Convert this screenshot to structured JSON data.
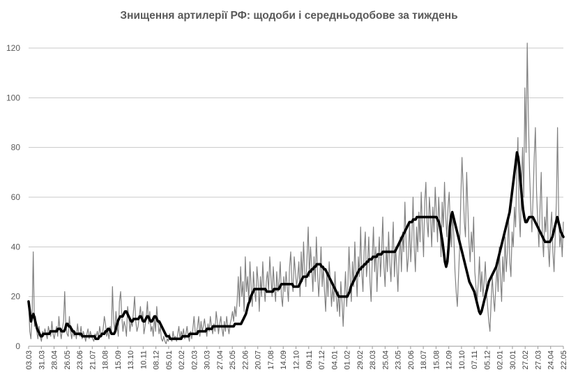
{
  "chart_data": {
    "type": "line",
    "title": "Знищення артилерії РФ: щодоби і середньодобове за тиждень",
    "xlabel": "",
    "ylabel": "",
    "ylim": [
      0,
      120
    ],
    "yticks": [
      "0",
      "20",
      "40",
      "60",
      "80",
      "100",
      "120"
    ],
    "xticks": [
      "03.03",
      "31.03",
      "28.04",
      "26.05",
      "23.06",
      "21.07",
      "18.08",
      "15.09",
      "13.10",
      "10.11",
      "08.12",
      "05.01",
      "02.02",
      "02.03",
      "30.03",
      "27.04",
      "25.05",
      "22.06",
      "20.07",
      "17.08",
      "14.09",
      "12.10",
      "09.11",
      "07.12",
      "04.01",
      "01.02",
      "29.02",
      "28.03",
      "25.04",
      "23.05",
      "20.06",
      "18.07",
      "15.08",
      "12.09",
      "10.10",
      "07.11",
      "05.12",
      "02.01",
      "30.01",
      "27.02",
      "27.03",
      "24.04",
      "22.05"
    ],
    "grid": true,
    "legend": "none",
    "series": [
      {
        "name": "",
        "color": "#808080",
        "values": [
          18,
          6,
          3,
          12,
          38,
          8,
          12,
          6,
          3,
          8,
          4,
          2,
          6,
          4,
          7,
          5,
          3,
          8,
          6,
          4,
          10,
          5,
          3,
          6,
          8,
          4,
          12,
          6,
          3,
          7,
          10,
          22,
          8,
          5,
          4,
          12,
          6,
          3,
          7,
          4,
          6,
          3,
          9,
          5,
          4,
          8,
          3,
          6,
          4,
          2,
          5,
          7,
          3,
          6,
          4,
          3,
          2,
          5,
          4,
          6,
          3,
          8,
          5,
          4,
          7,
          12,
          9,
          4,
          6,
          3,
          8,
          5,
          24,
          10,
          6,
          14,
          8,
          4,
          18,
          22,
          12,
          6,
          10,
          8,
          4,
          16,
          12,
          6,
          10,
          8,
          14,
          20,
          10,
          6,
          8,
          12,
          16,
          10,
          14,
          5,
          8,
          12,
          18,
          9,
          14,
          6,
          8,
          4,
          12,
          6,
          16,
          10,
          5,
          8,
          3,
          2,
          4,
          2,
          1,
          3,
          2,
          5,
          3,
          2,
          6,
          3,
          4,
          2,
          5,
          8,
          3,
          6,
          4,
          7,
          3,
          5,
          8,
          4,
          2,
          6,
          3,
          7,
          12,
          6,
          5,
          8,
          12,
          4,
          10,
          6,
          8,
          11,
          7,
          4,
          9,
          6,
          12,
          8,
          5,
          9,
          6,
          14,
          10,
          5,
          9,
          12,
          7,
          4,
          10,
          6,
          12,
          8,
          5,
          9,
          11,
          14,
          10,
          16,
          12,
          18,
          28,
          16,
          32,
          20,
          26,
          14,
          36,
          22,
          28,
          18,
          34,
          24,
          16,
          30,
          22,
          18,
          32,
          26,
          14,
          28,
          20,
          34,
          24,
          18,
          26,
          30,
          22,
          36,
          28,
          20,
          32,
          24,
          18,
          30,
          22,
          26,
          34,
          20,
          16,
          28,
          22,
          30,
          24,
          18,
          32,
          38,
          26,
          22,
          36,
          30,
          24,
          28,
          34,
          20,
          38,
          26,
          42,
          30,
          24,
          36,
          48,
          28,
          40,
          32,
          22,
          36,
          26,
          44,
          30,
          20,
          28,
          40,
          24,
          32,
          22,
          14,
          30,
          20,
          34,
          26,
          16,
          24,
          18,
          30,
          20,
          14,
          22,
          12,
          26,
          18,
          8,
          20,
          30,
          16,
          24,
          40,
          28,
          18,
          34,
          24,
          42,
          30,
          20,
          36,
          28,
          48,
          30,
          22,
          38,
          46,
          28,
          34,
          44,
          26,
          18,
          36,
          48,
          30,
          40,
          22,
          34,
          44,
          28,
          38,
          52,
          32,
          24,
          40,
          30,
          46,
          34,
          26,
          38,
          50,
          28,
          40,
          32,
          22,
          36,
          44,
          30,
          46,
          38,
          58,
          42,
          30,
          36,
          50,
          34,
          44,
          60,
          40,
          30,
          48,
          38,
          54,
          42,
          62,
          48,
          36,
          58,
          66,
          50,
          44,
          60,
          52,
          40,
          56,
          46,
          64,
          54,
          42,
          60,
          50,
          36,
          58,
          48,
          66,
          52,
          44,
          56,
          62,
          48,
          40,
          54,
          44,
          30,
          22,
          16,
          28,
          40,
          60,
          76,
          64,
          50,
          44,
          70,
          56,
          42,
          34,
          46,
          38,
          52,
          30,
          24,
          18,
          26,
          36,
          22,
          30,
          20,
          26,
          34,
          22,
          16,
          10,
          6,
          18,
          28,
          20,
          14,
          24,
          32,
          22,
          40,
          28,
          18,
          36,
          26,
          44,
          30,
          38,
          52,
          34,
          28,
          46,
          40,
          56,
          48,
          70,
          84,
          54,
          44,
          64,
          80,
          60,
          104,
          78,
          122,
          92,
          70,
          56,
          46,
          60,
          76,
          88,
          62,
          50,
          40,
          56,
          70,
          44,
          36,
          52,
          46,
          60,
          40,
          32,
          48,
          54,
          38,
          30,
          44,
          58,
          88,
          52,
          40,
          46,
          36,
          50
        ]
      },
      {
        "name": "",
        "color": "#000000",
        "values": [
          18,
          14,
          10,
          12,
          13,
          11,
          9,
          7,
          6,
          5,
          4,
          4,
          5,
          5,
          5,
          5,
          5,
          5,
          6,
          6,
          6,
          6,
          6,
          6,
          7,
          7,
          7,
          6,
          6,
          6,
          7,
          9,
          9,
          8,
          8,
          7,
          6,
          6,
          5,
          5,
          5,
          5,
          5,
          5,
          4,
          4,
          4,
          4,
          4,
          4,
          4,
          4,
          4,
          4,
          4,
          3,
          3,
          3,
          4,
          4,
          5,
          5,
          5,
          6,
          6,
          7,
          7,
          6,
          5,
          5,
          5,
          6,
          8,
          10,
          11,
          12,
          12,
          12,
          13,
          14,
          14,
          13,
          12,
          11,
          10,
          10,
          11,
          11,
          11,
          11,
          11,
          12,
          12,
          11,
          10,
          10,
          11,
          12,
          12,
          11,
          10,
          10,
          11,
          12,
          12,
          11,
          10,
          10,
          9,
          8,
          7,
          6,
          5,
          4,
          4,
          4,
          3,
          3,
          3,
          3,
          3,
          3,
          3,
          3,
          3,
          3,
          4,
          4,
          4,
          4,
          4,
          4,
          5,
          5,
          5,
          5,
          5,
          5,
          5,
          6,
          6,
          6,
          6,
          6,
          6,
          6,
          7,
          7,
          7,
          7,
          7,
          8,
          8,
          8,
          8,
          8,
          8,
          8,
          8,
          8,
          8,
          8,
          8,
          8,
          8,
          8,
          8,
          8,
          8,
          9,
          9,
          9,
          9,
          9,
          9,
          10,
          11,
          12,
          13,
          15,
          17,
          18,
          20,
          21,
          22,
          23,
          23,
          23,
          23,
          23,
          23,
          23,
          23,
          23,
          23,
          22,
          22,
          22,
          22,
          22,
          22,
          23,
          23,
          23,
          23,
          23,
          24,
          25,
          25,
          25,
          25,
          25,
          25,
          25,
          25,
          25,
          25,
          24,
          24,
          24,
          24,
          24,
          25,
          26,
          27,
          28,
          28,
          28,
          28,
          29,
          30,
          30,
          31,
          31,
          32,
          32,
          33,
          33,
          33,
          33,
          32,
          32,
          31,
          31,
          30,
          29,
          28,
          27,
          26,
          25,
          24,
          23,
          22,
          21,
          20,
          20,
          20,
          20,
          20,
          20,
          20,
          20,
          21,
          22,
          24,
          25,
          26,
          27,
          28,
          29,
          30,
          31,
          31,
          32,
          32,
          33,
          33,
          34,
          34,
          35,
          35,
          35,
          36,
          36,
          36,
          36,
          37,
          37,
          37,
          37,
          38,
          38,
          38,
          38,
          38,
          38,
          38,
          38,
          38,
          38,
          38,
          39,
          40,
          41,
          42,
          43,
          44,
          45,
          46,
          47,
          48,
          49,
          50,
          50,
          50,
          51,
          51,
          51,
          52,
          52,
          52,
          52,
          52,
          52,
          52,
          52,
          52,
          52,
          52,
          52,
          52,
          52,
          52,
          52,
          52,
          51,
          50,
          48,
          45,
          42,
          38,
          34,
          32,
          34,
          40,
          48,
          52,
          54,
          52,
          50,
          48,
          46,
          44,
          42,
          40,
          38,
          36,
          34,
          32,
          30,
          28,
          26,
          25,
          24,
          23,
          22,
          20,
          18,
          16,
          14,
          13,
          14,
          16,
          18,
          20,
          22,
          24,
          26,
          27,
          28,
          29,
          30,
          31,
          32,
          34,
          36,
          38,
          40,
          42,
          44,
          46,
          48,
          50,
          52,
          54,
          58,
          62,
          66,
          70,
          74,
          78,
          76,
          72,
          66,
          60,
          55,
          52,
          50,
          50,
          51,
          52,
          52,
          52,
          52,
          51,
          50,
          49,
          48,
          47,
          46,
          45,
          44,
          43,
          42,
          42,
          42,
          42,
          42,
          43,
          44,
          46,
          48,
          50,
          52,
          50,
          48,
          46,
          45,
          44
        ]
      }
    ]
  }
}
